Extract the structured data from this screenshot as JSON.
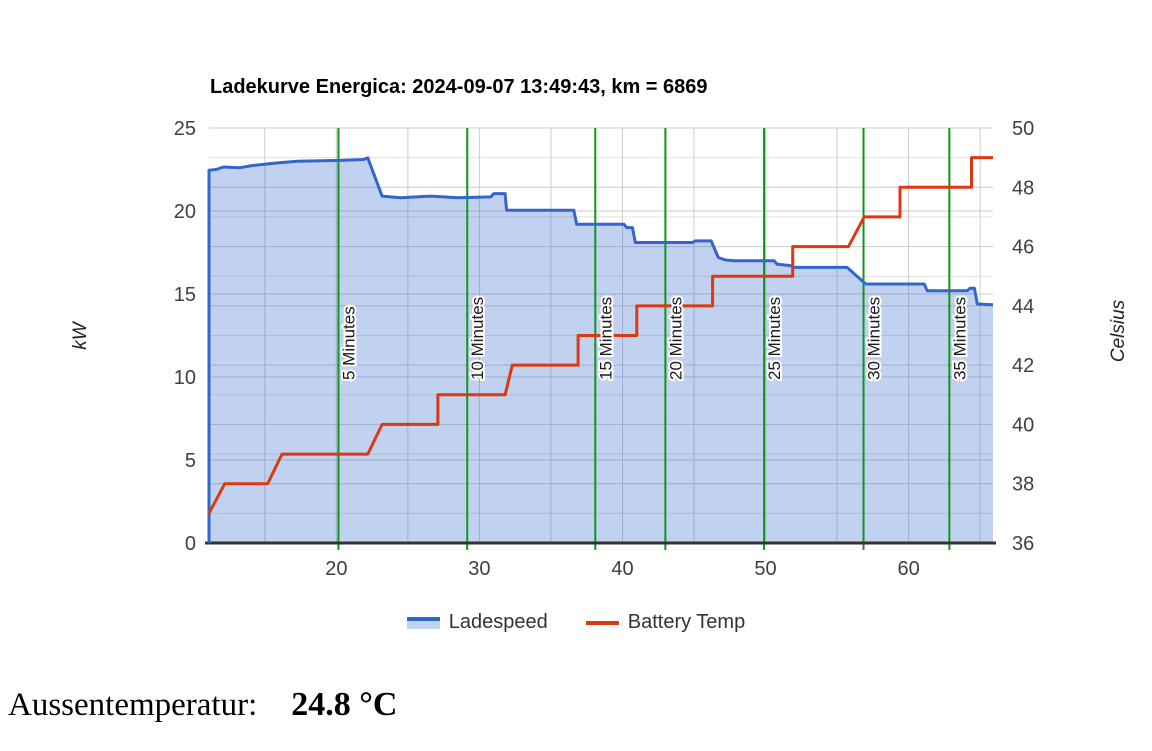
{
  "title": "Ladekurve Energica: 2024-09-07 13:49:43, km = 6869",
  "legend": [
    {
      "label": "Ladespeed",
      "style": "area",
      "color": "#3366CC"
    },
    {
      "label": "Battery Temp",
      "style": "line",
      "color": "#DC3912"
    }
  ],
  "footer": {
    "label": "Aussentemperatur:",
    "value": "24.8 °C"
  },
  "colors": {
    "ladespeed_line": "#3366CC",
    "ladespeed_fill": "rgba(51,102,204,0.3)",
    "battery_temp_line": "#DC3912",
    "time_marker_line": "#109618",
    "gridline_major": "#cccccc",
    "gridline_minor": "#e2e2e2",
    "axis_baseline": "#333333",
    "tick_label": "#404040",
    "axis_title": "#222222",
    "marker_label": "#1a1a1a"
  },
  "chart_data": {
    "type": "area",
    "title": "Ladekurve Energica: 2024-09-07 13:49:43, km = 6869",
    "x_axis": {
      "min": 11.1,
      "max": 65.9,
      "tick_labels": [
        20,
        30,
        40,
        50,
        60
      ],
      "grid_step": 5,
      "grid_start": 15,
      "grid_end": 65
    },
    "y_left": {
      "title": "kW",
      "min": 0,
      "max": 25,
      "tick_labels": [
        0,
        5,
        10,
        15,
        20,
        25
      ],
      "grid_step": 5
    },
    "y_right": {
      "title": "Celsius",
      "min": 36,
      "max": 50,
      "tick_labels": [
        36,
        38,
        40,
        42,
        44,
        46,
        48,
        50
      ],
      "minor_grid_step": 1
    },
    "grid": true,
    "legend_position": "bottom",
    "series": [
      {
        "name": "Ladespeed",
        "axis": "left",
        "unit": "kW",
        "style": "area",
        "color": "#3366CC",
        "points": [
          [
            11.1,
            22.45
          ],
          [
            11.6,
            22.5
          ],
          [
            12.1,
            22.65
          ],
          [
            13.2,
            22.6
          ],
          [
            14.2,
            22.75
          ],
          [
            15.9,
            22.9
          ],
          [
            17.3,
            23.0
          ],
          [
            20.3,
            23.05
          ],
          [
            21.9,
            23.1
          ],
          [
            22.2,
            23.2
          ],
          [
            23.2,
            20.9
          ],
          [
            24.5,
            20.8
          ],
          [
            26.6,
            20.9
          ],
          [
            28.5,
            20.8
          ],
          [
            30.8,
            20.85
          ],
          [
            31.0,
            21.05
          ],
          [
            31.8,
            21.05
          ],
          [
            31.9,
            20.05
          ],
          [
            36.6,
            20.05
          ],
          [
            36.8,
            19.2
          ],
          [
            40.1,
            19.2
          ],
          [
            40.3,
            19.0
          ],
          [
            40.7,
            19.0
          ],
          [
            40.9,
            18.1
          ],
          [
            44.9,
            18.1
          ],
          [
            45.1,
            18.2
          ],
          [
            46.2,
            18.2
          ],
          [
            46.7,
            17.2
          ],
          [
            47.2,
            17.05
          ],
          [
            47.8,
            17.0
          ],
          [
            50.6,
            17.0
          ],
          [
            50.8,
            16.8
          ],
          [
            51.8,
            16.7
          ],
          [
            52.0,
            16.6
          ],
          [
            55.7,
            16.6
          ],
          [
            57.0,
            15.6
          ],
          [
            61.1,
            15.6
          ],
          [
            61.3,
            15.2
          ],
          [
            64.1,
            15.2
          ],
          [
            64.3,
            15.35
          ],
          [
            64.6,
            15.35
          ],
          [
            64.8,
            14.4
          ],
          [
            65.9,
            14.35
          ]
        ]
      },
      {
        "name": "Battery Temp",
        "axis": "right",
        "unit": "Celsius",
        "style": "line",
        "color": "#DC3912",
        "points": [
          [
            11.1,
            37.0
          ],
          [
            12.2,
            38
          ],
          [
            15.2,
            38
          ],
          [
            16.2,
            39
          ],
          [
            22.2,
            39
          ],
          [
            23.2,
            40
          ],
          [
            27.1,
            40
          ],
          [
            27.1,
            41
          ],
          [
            31.8,
            41
          ],
          [
            32.3,
            42
          ],
          [
            36.9,
            42
          ],
          [
            36.9,
            43
          ],
          [
            41.0,
            43
          ],
          [
            41.0,
            44
          ],
          [
            46.3,
            44
          ],
          [
            46.3,
            45
          ],
          [
            51.9,
            45
          ],
          [
            51.9,
            46
          ],
          [
            55.8,
            46
          ],
          [
            56.9,
            47
          ],
          [
            59.4,
            47
          ],
          [
            59.4,
            48
          ],
          [
            64.4,
            48
          ],
          [
            64.4,
            49
          ],
          [
            65.9,
            49
          ]
        ]
      }
    ],
    "annotations": [
      {
        "label": "5 Minutes",
        "x": 20.15
      },
      {
        "label": "10 Minutes",
        "x": 29.15
      },
      {
        "label": "15 Minutes",
        "x": 38.1
      },
      {
        "label": "20 Minutes",
        "x": 43.0
      },
      {
        "label": "25 Minutes",
        "x": 49.9
      },
      {
        "label": "30 Minutes",
        "x": 56.85
      },
      {
        "label": "35 Minutes",
        "x": 62.85
      }
    ]
  }
}
